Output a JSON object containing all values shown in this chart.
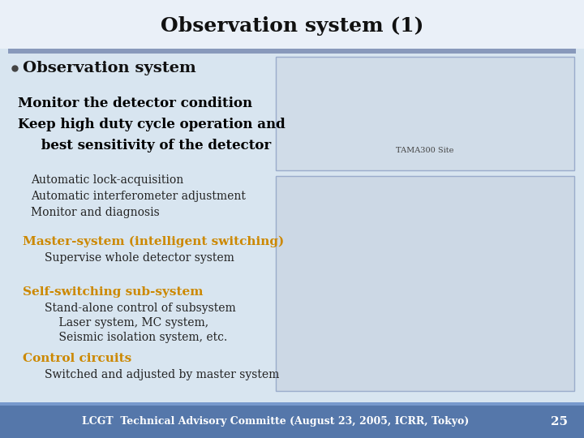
{
  "title": "Observation system (1)",
  "slide_bg": "#dce8f2",
  "title_bg": "#e8f0f8",
  "bar_color": "#8899bb",
  "bullet_heading": "Observation system",
  "bold_text_lines": [
    "Monitor the detector condition",
    "Keep high duty cycle operation and",
    "     best sensitivity of the detector"
  ],
  "normal_text_lines": [
    "Automatic lock-acquisition",
    "Automatic interferometer adjustment",
    "Monitor and diagnosis"
  ],
  "orange_sections": [
    {
      "heading": "Master-system (intelligent switching)",
      "subs": [
        "Supervise whole detector system"
      ]
    },
    {
      "heading": "Self-switching sub-system",
      "subs": [
        "Stand-alone control of subsystem",
        "    Laser system, MC system,",
        "    Seismic isolation system, etc."
      ]
    },
    {
      "heading": "Control circuits",
      "subs": [
        "Switched and adjusted by master system"
      ]
    }
  ],
  "footer_text": "LCGT  Technical Advisory Committe (August 23, 2005, ICRR, Tokyo)",
  "footer_page": "25",
  "title_fontsize": 18,
  "bullet_heading_fontsize": 14,
  "bold_fontsize": 12,
  "body_fontsize": 10,
  "orange_heading_color": "#cc8800",
  "bold_text_color": "#000000",
  "normal_text_color": "#222222",
  "footer_bg": "#5577aa",
  "footer_text_color": "#ffffff"
}
